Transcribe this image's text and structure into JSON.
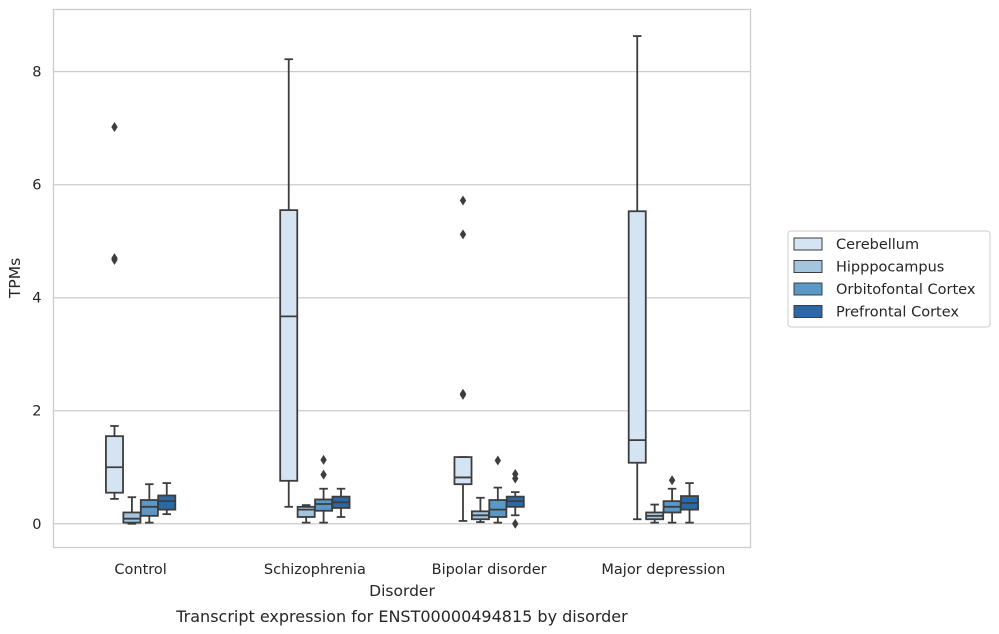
{
  "caption": "Transcript expression for ENST00000494815 by disorder",
  "chart_data": {
    "type": "box",
    "title": "",
    "xlabel": "Disorder",
    "ylabel": "TPMs",
    "ylim": [
      -0.42,
      9.1
    ],
    "yticks": [
      0,
      2,
      4,
      6,
      8
    ],
    "grid": "horizontal",
    "legend_position": "right",
    "categories": [
      "Control",
      "Schizophrenia",
      "Bipolar disorder",
      "Major depression"
    ],
    "series": [
      {
        "name": "Cerebellum",
        "color": "#d5e4f3",
        "boxes": [
          {
            "whisker_low": 0.44,
            "q1": 0.55,
            "median": 1.0,
            "q3": 1.55,
            "whisker_high": 1.73,
            "outliers": [
              7.02,
              4.67,
              4.7
            ]
          },
          {
            "whisker_low": 0.3,
            "q1": 0.76,
            "median": 3.67,
            "q3": 5.55,
            "whisker_high": 8.22,
            "outliers": []
          },
          {
            "whisker_low": 0.05,
            "q1": 0.7,
            "median": 0.82,
            "q3": 1.18,
            "whisker_high": 1.18,
            "outliers": [
              5.72,
              5.12,
              2.3,
              2.28
            ]
          },
          {
            "whisker_low": 0.08,
            "q1": 1.08,
            "median": 1.48,
            "q3": 5.53,
            "whisker_high": 8.63,
            "outliers": []
          }
        ]
      },
      {
        "name": "Hipppocampus",
        "color": "#a3c5de",
        "boxes": [
          {
            "whisker_low": 0.0,
            "q1": 0.02,
            "median": 0.09,
            "q3": 0.2,
            "whisker_high": 0.47,
            "outliers": []
          },
          {
            "whisker_low": 0.02,
            "q1": 0.12,
            "median": 0.25,
            "q3": 0.3,
            "whisker_high": 0.33,
            "outliers": []
          },
          {
            "whisker_low": 0.03,
            "q1": 0.08,
            "median": 0.15,
            "q3": 0.22,
            "whisker_high": 0.46,
            "outliers": []
          },
          {
            "whisker_low": 0.02,
            "q1": 0.08,
            "median": 0.14,
            "q3": 0.2,
            "whisker_high": 0.34,
            "outliers": []
          }
        ]
      },
      {
        "name": "Orbitofontal Cortex",
        "color": "#5a98c8",
        "boxes": [
          {
            "whisker_low": 0.02,
            "q1": 0.14,
            "median": 0.3,
            "q3": 0.42,
            "whisker_high": 0.7,
            "outliers": []
          },
          {
            "whisker_low": 0.02,
            "q1": 0.23,
            "median": 0.35,
            "q3": 0.43,
            "whisker_high": 0.62,
            "outliers": [
              1.13,
              0.87
            ]
          },
          {
            "whisker_low": 0.02,
            "q1": 0.12,
            "median": 0.25,
            "q3": 0.42,
            "whisker_high": 0.64,
            "outliers": [
              1.12
            ]
          },
          {
            "whisker_low": 0.02,
            "q1": 0.2,
            "median": 0.3,
            "q3": 0.4,
            "whisker_high": 0.62,
            "outliers": [
              0.77
            ]
          }
        ]
      },
      {
        "name": "Prefrontal Cortex",
        "color": "#2b69a6",
        "boxes": [
          {
            "whisker_low": 0.17,
            "q1": 0.25,
            "median": 0.4,
            "q3": 0.5,
            "whisker_high": 0.72,
            "outliers": []
          },
          {
            "whisker_low": 0.12,
            "q1": 0.28,
            "median": 0.38,
            "q3": 0.48,
            "whisker_high": 0.62,
            "outliers": []
          },
          {
            "whisker_low": 0.15,
            "q1": 0.3,
            "median": 0.4,
            "q3": 0.48,
            "whisker_high": 0.56,
            "outliers": [
              0.88,
              0.8,
              0.0
            ]
          },
          {
            "whisker_low": 0.02,
            "q1": 0.25,
            "median": 0.37,
            "q3": 0.49,
            "whisker_high": 0.72,
            "outliers": []
          }
        ]
      }
    ]
  }
}
